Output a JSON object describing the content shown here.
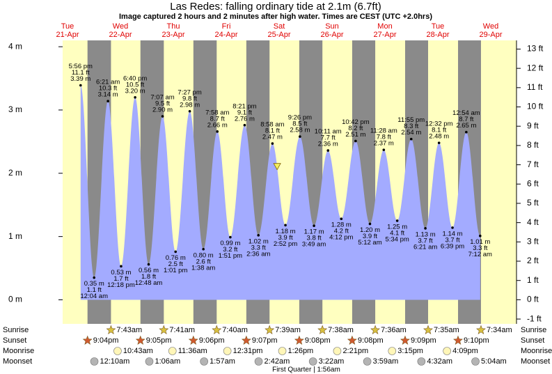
{
  "chart_data": {
    "type": "area",
    "title": "Las Redes: falling  ordinary tide at 2.1m (6.7ft)",
    "subtitle": "Image captured 2 hours and 2 minutes after high water. Times are CEST (UTC +2.0hrs)",
    "days": [
      "Tue",
      "Wed",
      "Thu",
      "Fri",
      "Sat",
      "Sun",
      "Mon",
      "Tue",
      "Wed"
    ],
    "dates": [
      "21-Apr",
      "22-Apr",
      "23-Apr",
      "24-Apr",
      "25-Apr",
      "26-Apr",
      "27-Apr",
      "28-Apr",
      "29-Apr"
    ],
    "x": [
      "5:56 pm",
      "12:04 am",
      "6:21 am",
      "12:18 pm",
      "6:40 pm",
      "12:48 am",
      "7:07 am",
      "1:01 pm",
      "7:27 pm",
      "1:38 am",
      "7:58 am",
      "1:51 pm",
      "8:21 pm",
      "2:36 am",
      "8:58 am",
      "2:52 pm",
      "9:26 pm",
      "3:49 am",
      "10:11 am",
      "4:12 pm",
      "10:42 pm",
      "5:12 am",
      "11:28 am",
      "5:34 pm",
      "11:55 pm",
      "6:21 am",
      "12:32 pm",
      "6:39 pm",
      "12:54 am",
      "7:12 am"
    ],
    "values": [
      3.39,
      0.35,
      3.14,
      0.53,
      3.2,
      0.56,
      2.9,
      0.76,
      2.98,
      0.8,
      2.66,
      0.99,
      2.76,
      1.02,
      2.47,
      1.18,
      2.58,
      1.17,
      2.36,
      1.28,
      2.51,
      1.2,
      2.37,
      1.25,
      2.54,
      1.13,
      2.48,
      1.14,
      2.65,
      1.01
    ],
    "value_labels": [
      "3.39 m",
      "0.35 m",
      "3.14 m",
      "0.53 m",
      "3.20 m",
      "0.56 m",
      "2.90 m",
      "0.76 m",
      "2.98 m",
      "0.80 m",
      "2.66 m",
      "0.99 m",
      "2.76 m",
      "1.02 m",
      "2.47 m",
      "1.18 m",
      "2.58 m",
      "1.17 m",
      "2.36 m",
      "1.28 m",
      "2.51 m",
      "1.20 m",
      "2.37 m",
      "1.25 m",
      "2.54 m",
      "1.13 m",
      "2.48 m",
      "1.14 m",
      "2.65 m",
      "1.01 m"
    ],
    "ft_labels": [
      "11.1 ft",
      "1.1 ft",
      "10.3 ft",
      "1.7 ft",
      "10.5 ft",
      "1.8 ft",
      "9.5 ft",
      "2.5 ft",
      "9.8 ft",
      "2.6 ft",
      "8.7 ft",
      "3.2 ft",
      "9.1 ft",
      "3.3 ft",
      "8.1 ft",
      "3.9 ft",
      "8.5 ft",
      "3.8 ft",
      "7.7 ft",
      "4.2 ft",
      "8.2 ft",
      "3.9 ft",
      "7.8 ft",
      "4.1 ft",
      "8.3 ft",
      "3.7 ft",
      "8.1 ft",
      "3.7 ft",
      "8.7 ft",
      "3.3 ft"
    ],
    "color": "#a3abff",
    "background": "#ffffc0",
    "night_color": "#8a8a8a",
    "current_level": 2.1,
    "current_color": "#f4f060",
    "ylim": [
      -0.38,
      4.1
    ],
    "yticks": [
      {
        "value": 0,
        "label": "0 m"
      },
      {
        "value": 1,
        "label": "1 m"
      },
      {
        "value": 2,
        "label": "2 m"
      },
      {
        "value": 3,
        "label": "3 m"
      },
      {
        "value": 4,
        "label": "4 m"
      }
    ],
    "y2lim": [
      -1.25,
      13.45
    ],
    "y2ticks": [
      {
        "value": -1,
        "label": "-1 ft"
      },
      {
        "value": 0,
        "label": "0 ft"
      },
      {
        "value": 1,
        "label": "1 ft"
      },
      {
        "value": 2,
        "label": "2 ft"
      },
      {
        "value": 3,
        "label": "3 ft"
      },
      {
        "value": 4,
        "label": "4 ft"
      },
      {
        "value": 5,
        "label": "5 ft"
      },
      {
        "value": 6,
        "label": "6 ft"
      },
      {
        "value": 7,
        "label": "7 ft"
      },
      {
        "value": 8,
        "label": "8 ft"
      },
      {
        "value": 9,
        "label": "9 ft"
      },
      {
        "value": 10,
        "label": "10 ft"
      },
      {
        "value": 11,
        "label": "11 ft"
      },
      {
        "value": 12,
        "label": "12 ft"
      },
      {
        "value": 13,
        "label": "13 ft"
      }
    ],
    "row_labels": [
      "Sunrise",
      "Sunset",
      "Moonrise",
      "Moonset"
    ],
    "sunrise": [
      null,
      "7:43am",
      "7:41am",
      "7:40am",
      "7:39am",
      "7:38am",
      "7:36am",
      "7:35am",
      "7:34am"
    ],
    "sunset": [
      "9:04pm",
      "9:05pm",
      "9:06pm",
      "9:07pm",
      "9:08pm",
      "9:08pm",
      "9:09pm",
      "9:10pm",
      null
    ],
    "moonrise": [
      null,
      "10:43am",
      "11:36am",
      "12:31pm",
      "1:26pm",
      "2:21pm",
      "3:15pm",
      "4:09pm",
      null
    ],
    "moonset": [
      null,
      "12:10am",
      "1:06am",
      "1:57am",
      "2:42am",
      "3:22am",
      "3:59am",
      "4:32am",
      "5:04am"
    ],
    "moon_phase": "First Quarter | 1:56am"
  }
}
